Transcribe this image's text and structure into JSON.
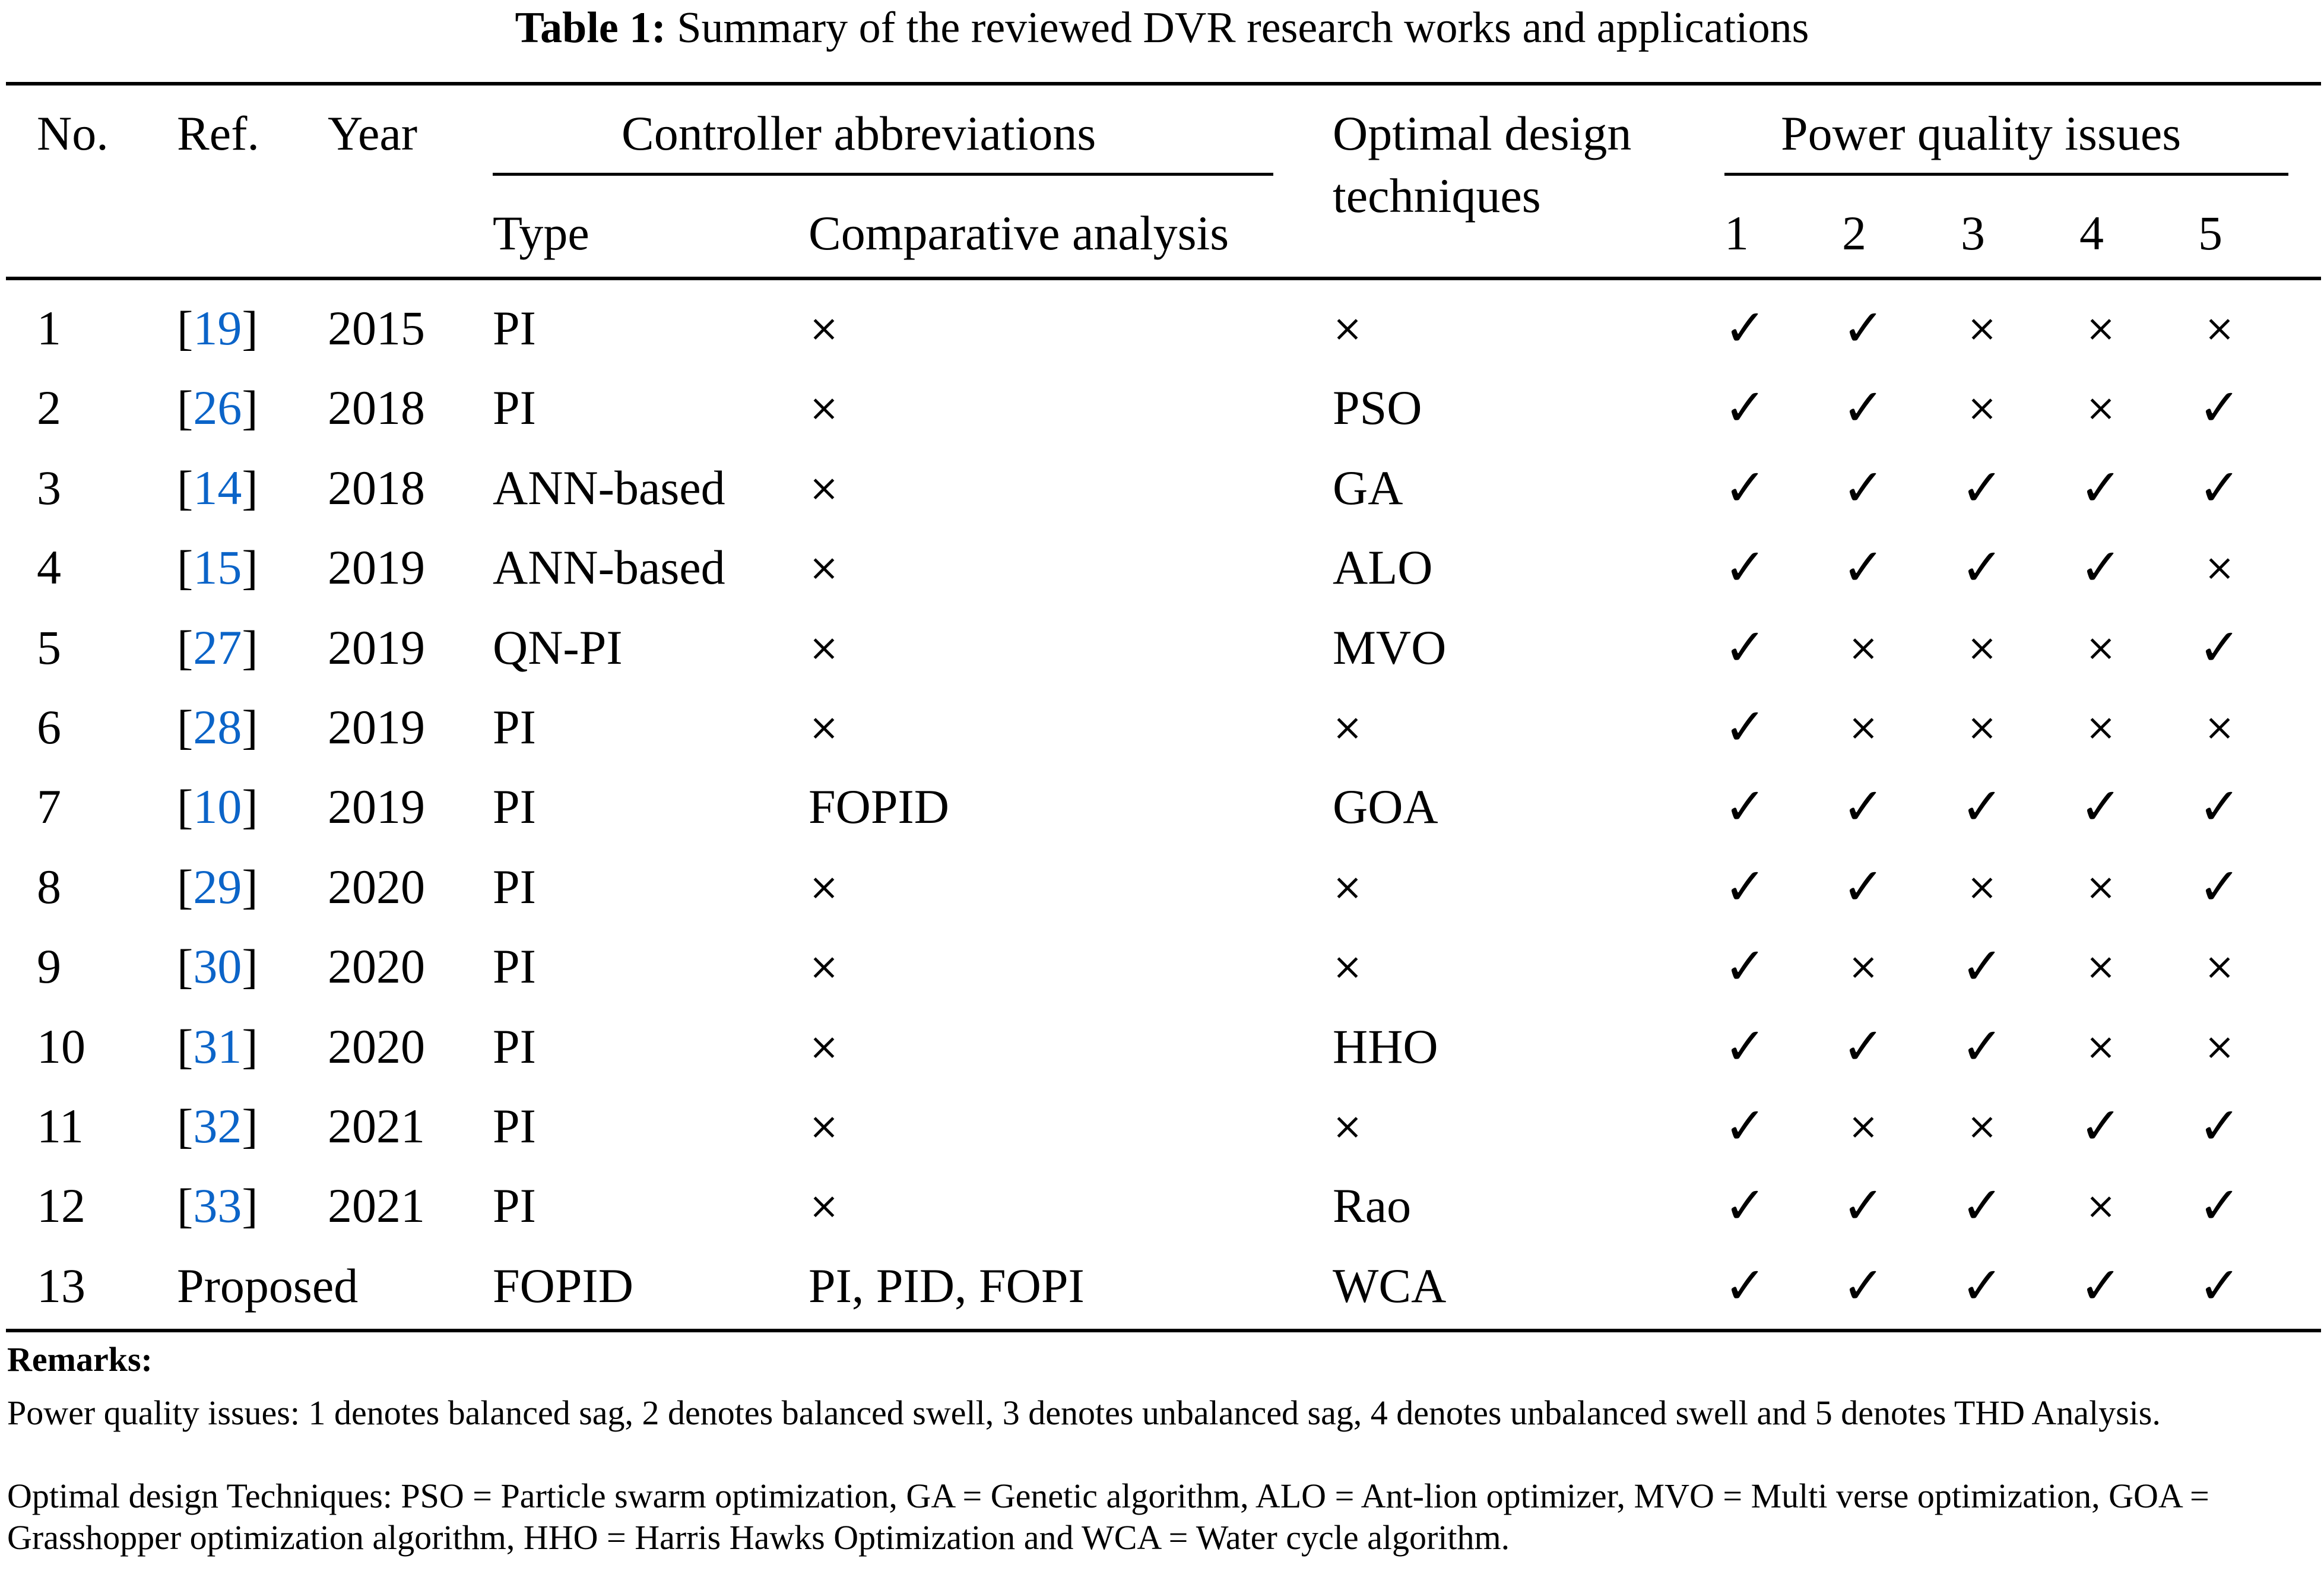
{
  "caption": {
    "label": "Table 1:",
    "text": "Summary of the reviewed DVR research works and applications"
  },
  "headers": {
    "no": "No.",
    "ref": "Ref.",
    "year": "Year",
    "controller_group": "Controller abbreviations",
    "type": "Type",
    "comparative": "Comparative analysis",
    "optimal_line1": "Optimal design",
    "optimal_line2": "techniques",
    "pq_group": "Power quality issues",
    "pq_cols": [
      "1",
      "2",
      "3",
      "4",
      "5"
    ]
  },
  "colors": {
    "ref_link": "#0b64c8",
    "text": "#000000"
  },
  "rows": [
    {
      "no": "1",
      "ref": "19",
      "year": "2015",
      "type": "PI",
      "comparative": "×",
      "optimal": "×",
      "pq": [
        "✓",
        "✓",
        "×",
        "×",
        "×"
      ]
    },
    {
      "no": "2",
      "ref": "26",
      "year": "2018",
      "type": "PI",
      "comparative": "×",
      "optimal": "PSO",
      "pq": [
        "✓",
        "✓",
        "×",
        "×",
        "✓"
      ]
    },
    {
      "no": "3",
      "ref": "14",
      "year": "2018",
      "type": "ANN-based",
      "comparative": "×",
      "optimal": "GA",
      "pq": [
        "✓",
        "✓",
        "✓",
        "✓",
        "✓"
      ]
    },
    {
      "no": "4",
      "ref": "15",
      "year": "2019",
      "type": "ANN-based",
      "comparative": "×",
      "optimal": "ALO",
      "pq": [
        "✓",
        "✓",
        "✓",
        "✓",
        "×"
      ]
    },
    {
      "no": "5",
      "ref": "27",
      "year": "2019",
      "type": "QN-PI",
      "comparative": "×",
      "optimal": "MVO",
      "pq": [
        "✓",
        "×",
        "×",
        "×",
        "✓"
      ]
    },
    {
      "no": "6",
      "ref": "28",
      "year": "2019",
      "type": "PI",
      "comparative": "×",
      "optimal": "×",
      "pq": [
        "✓",
        "×",
        "×",
        "×",
        "×"
      ]
    },
    {
      "no": "7",
      "ref": "10",
      "year": "2019",
      "type": "PI",
      "comparative": "FOPID",
      "optimal": "GOA",
      "pq": [
        "✓",
        "✓",
        "✓",
        "✓",
        "✓"
      ]
    },
    {
      "no": "8",
      "ref": "29",
      "year": "2020",
      "type": "PI",
      "comparative": "×",
      "optimal": "×",
      "pq": [
        "✓",
        "✓",
        "×",
        "×",
        "✓"
      ]
    },
    {
      "no": "9",
      "ref": "30",
      "year": "2020",
      "type": "PI",
      "comparative": "×",
      "optimal": "×",
      "pq": [
        "✓",
        "×",
        "✓",
        "×",
        "×"
      ]
    },
    {
      "no": "10",
      "ref": "31",
      "year": "2020",
      "type": "PI",
      "comparative": "×",
      "optimal": "HHO",
      "pq": [
        "✓",
        "✓",
        "✓",
        "×",
        "×"
      ]
    },
    {
      "no": "11",
      "ref": "32",
      "year": "2021",
      "type": "PI",
      "comparative": "×",
      "optimal": "×",
      "pq": [
        "✓",
        "×",
        "×",
        "✓",
        "✓"
      ]
    },
    {
      "no": "12",
      "ref": "33",
      "year": "2021",
      "type": "PI",
      "comparative": "×",
      "optimal": "Rao",
      "pq": [
        "✓",
        "✓",
        "✓",
        "×",
        "✓"
      ]
    }
  ],
  "proposed_row": {
    "no": "13",
    "ref_year": "Proposed",
    "type": "FOPID",
    "comparative": "PI, PID, FOPI",
    "optimal": "WCA",
    "pq": [
      "✓",
      "✓",
      "✓",
      "✓",
      "✓"
    ]
  },
  "remarks": {
    "title": "Remarks:",
    "pq_note": "Power quality issues: 1 denotes balanced sag, 2 denotes balanced swell, 3 denotes unbalanced sag, 4 denotes unbalanced swell and 5 denotes THD Analysis.",
    "opt_note": "Optimal design Techniques: PSO = Particle swarm optimization, GA = Genetic algorithm, ALO = Ant-lion optimizer, MVO = Multi verse optimization, GOA = Grasshopper optimization algorithm, HHO = Harris Hawks Optimization and WCA = Water cycle algorithm."
  }
}
